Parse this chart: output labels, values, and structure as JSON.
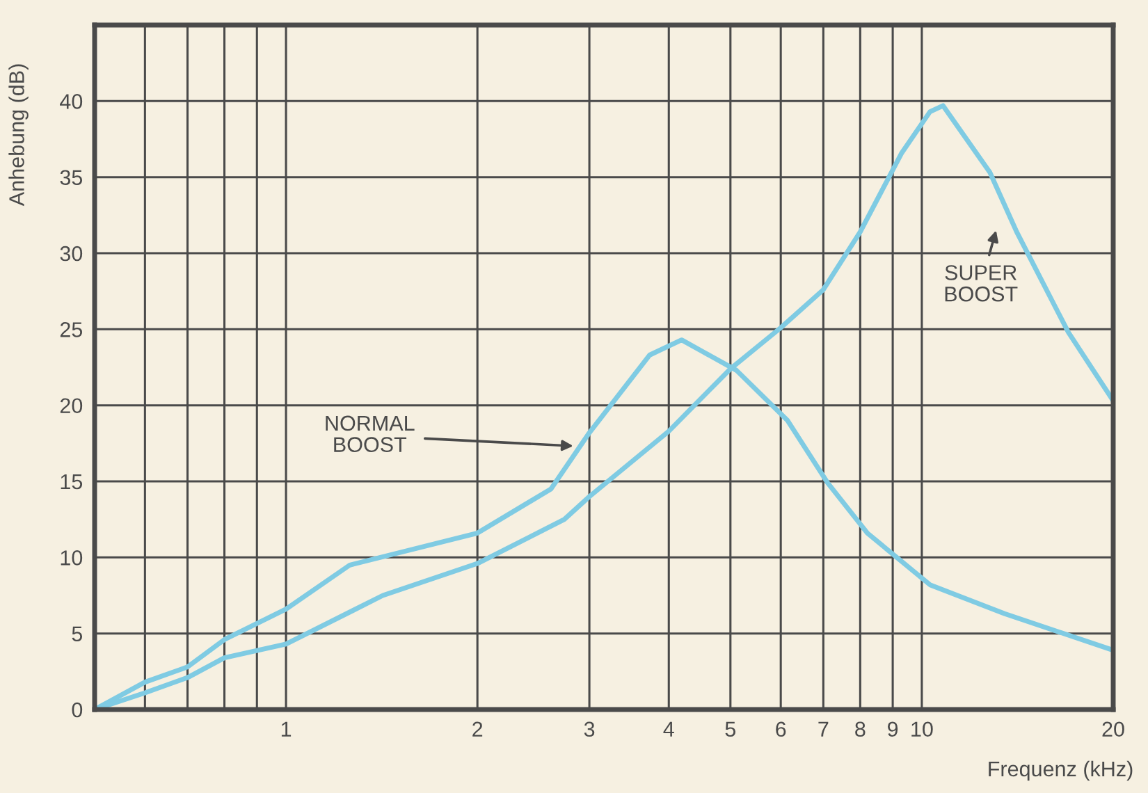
{
  "chart_data": {
    "type": "line",
    "xlabel": "Frequenz (kHz)",
    "ylabel": "Anhebung (dB)",
    "log": "x",
    "xlim": [
      0.5,
      20
    ],
    "ylim": [
      0,
      45
    ],
    "xticks": [
      {
        "value": 0.6,
        "label": null
      },
      {
        "value": 0.7,
        "label": null
      },
      {
        "value": 0.8,
        "label": null
      },
      {
        "value": 0.9,
        "label": null
      },
      1,
      2,
      3,
      4,
      5,
      6,
      7,
      8,
      9,
      10,
      20
    ],
    "yticks": [
      0,
      5,
      10,
      15,
      20,
      25,
      30,
      35,
      40
    ],
    "grid": true,
    "legend": false,
    "marker": "none",
    "line_style": "solid",
    "series": [
      {
        "color": "#7fcbe3",
        "x": [
          0.5,
          0.6,
          0.7,
          0.8,
          1,
          1.26,
          2,
          2.61,
          3,
          3.73,
          4.19,
          5.11,
          6.15,
          7.11,
          8.21,
          10.3,
          13.5,
          20
        ],
        "values": [
          0,
          1.8,
          2.8,
          4.6,
          6.6,
          9.5,
          11.6,
          14.5,
          18.2,
          23.3,
          24.3,
          22.3,
          19.0,
          14.9,
          11.6,
          8.2,
          6.3,
          3.9
        ]
      },
      {
        "color": "#7fcbe3",
        "x": [
          0.5,
          0.6,
          0.7,
          0.8,
          1,
          1.42,
          2,
          2.74,
          3,
          4,
          5,
          6,
          7,
          8,
          9.3,
          10.3,
          10.8,
          12.8,
          14.1,
          17,
          20
        ],
        "values": [
          0,
          1.1,
          2.1,
          3.4,
          4.3,
          7.5,
          9.6,
          12.5,
          14,
          18.3,
          22.4,
          25.1,
          27.6,
          31.4,
          36.6,
          39.3,
          39.7,
          35.3,
          31.4,
          24.8,
          20.3
        ]
      }
    ],
    "annotations": [
      "NORMAL\nBOOST",
      "SUPER\nBOOST"
    ]
  }
}
